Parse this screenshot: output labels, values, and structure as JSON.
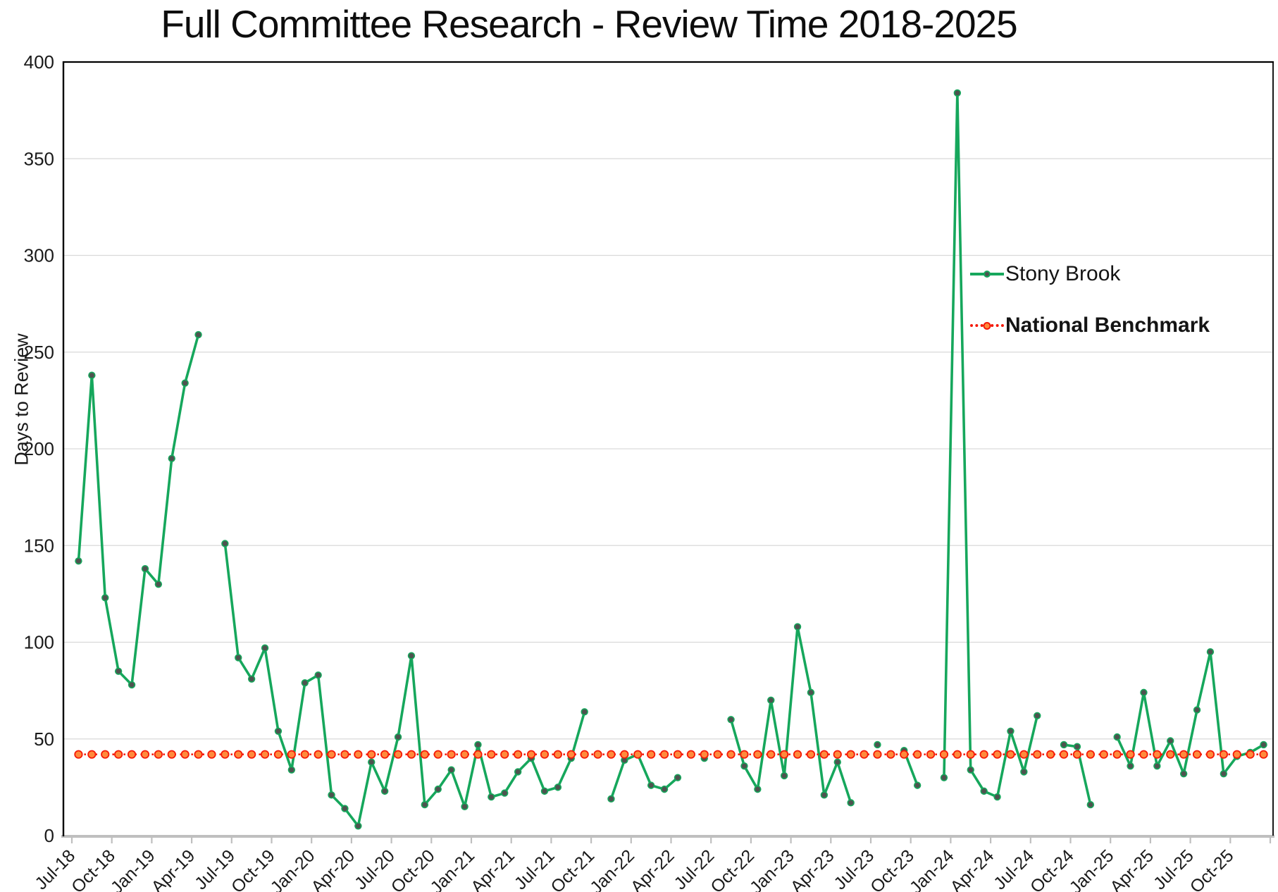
{
  "title": "Full Committee Research - Review Time 2018-2025",
  "legend": {
    "stony_brook_label": "Stony Brook",
    "benchmark_label": "National Benchmark"
  },
  "colors": {
    "stony_brook_line": "#16A75C",
    "stony_brook_marker": "#4E534F",
    "benchmark_line": "#F51908",
    "benchmark_marker_fill": "#FF8A3C",
    "gridline": "#D9D9D9",
    "axis_gray": "#BFBFBF",
    "axis_black": "#000000",
    "label_text": "#1a1a1a"
  },
  "chart_data": {
    "type": "line",
    "title": "Full Committee Research - Review Time 2018-2025",
    "xlabel": "",
    "ylabel": "Days to Review",
    "ylim": [
      0,
      400
    ],
    "yticks": [
      0,
      50,
      100,
      150,
      200,
      250,
      300,
      350,
      400
    ],
    "grid": true,
    "legend_position": "center-right",
    "xtick_every": 3,
    "categories": [
      "Jul-18",
      "Aug-18",
      "Sep-18",
      "Oct-18",
      "Nov-18",
      "Dec-18",
      "Jan-19",
      "Feb-19",
      "Mar-19",
      "Apr-19",
      "May-19",
      "Jun-19",
      "Jul-19",
      "Aug-19",
      "Sep-19",
      "Oct-19",
      "Nov-19",
      "Dec-19",
      "Jan-20",
      "Feb-20",
      "Mar-20",
      "Apr-20",
      "May-20",
      "Jun-20",
      "Jul-20",
      "Aug-20",
      "Sep-20",
      "Oct-20",
      "Nov-20",
      "Dec-20",
      "Jan-21",
      "Feb-21",
      "Mar-21",
      "Apr-21",
      "May-21",
      "Jun-21",
      "Jul-21",
      "Aug-21",
      "Sep-21",
      "Oct-21",
      "Nov-21",
      "Dec-21",
      "Jan-22",
      "Feb-22",
      "Mar-22",
      "Apr-22",
      "May-22",
      "Jun-22",
      "Jul-22",
      "Aug-22",
      "Sep-22",
      "Oct-22",
      "Nov-22",
      "Dec-22",
      "Jan-23",
      "Feb-23",
      "Mar-23",
      "Apr-23",
      "May-23",
      "Jun-23",
      "Jul-23",
      "Aug-23",
      "Sep-23",
      "Oct-23",
      "Nov-23",
      "Dec-23",
      "Jan-24",
      "Feb-24",
      "Mar-24",
      "Apr-24",
      "May-24",
      "Jun-24",
      "Jul-24",
      "Aug-24",
      "Sep-24",
      "Oct-24",
      "Nov-24",
      "Dec-24",
      "Jan-25",
      "Feb-25",
      "Mar-25",
      "Apr-25",
      "May-25",
      "Jun-25",
      "Jul-25",
      "Aug-25",
      "Sep-25",
      "Oct-25",
      "Nov-25",
      "Dec-25"
    ],
    "series": [
      {
        "name": "Stony Brook",
        "color": "#16A75C",
        "marker": "circle",
        "marker_color": "#4E534F",
        "values": [
          142,
          238,
          123,
          85,
          78,
          138,
          130,
          195,
          234,
          259,
          null,
          151,
          92,
          81,
          97,
          54,
          34,
          79,
          83,
          21,
          14,
          5,
          38,
          23,
          51,
          93,
          16,
          24,
          34,
          15,
          47,
          20,
          22,
          33,
          40,
          23,
          25,
          40,
          64,
          null,
          19,
          39,
          42,
          26,
          24,
          30,
          null,
          40,
          null,
          60,
          36,
          24,
          70,
          31,
          108,
          74,
          21,
          38,
          17,
          null,
          47,
          null,
          44,
          26,
          null,
          30,
          384,
          34,
          23,
          20,
          54,
          33,
          62,
          null,
          47,
          46,
          16,
          null,
          51,
          36,
          74,
          36,
          49,
          32,
          65,
          95,
          32,
          41,
          43,
          47
        ]
      },
      {
        "name": "National Benchmark",
        "color": "#F51908",
        "style": "dotted",
        "marker": "circle",
        "marker_fill": "#FF8A3C",
        "constant": 42
      }
    ]
  }
}
